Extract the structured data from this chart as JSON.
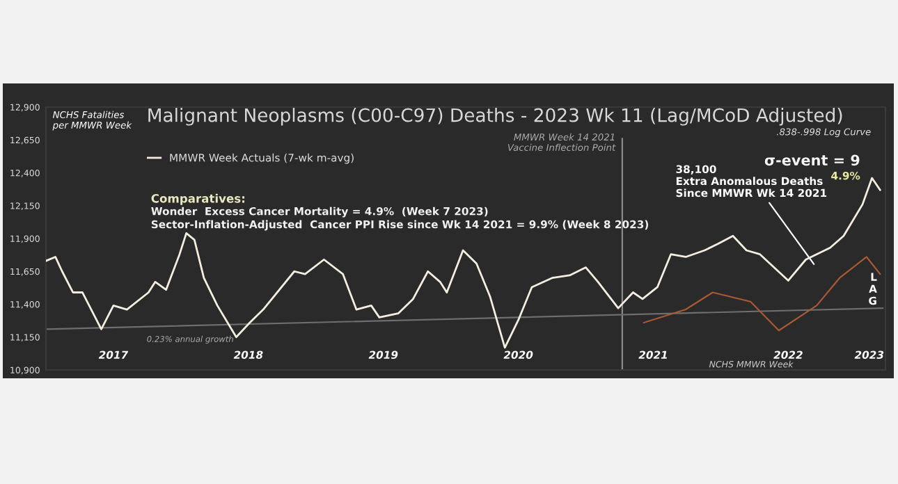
{
  "chart_data": {
    "type": "line",
    "title": "Malignant Neoplasms (C00-C97) Deaths - 2023 Wk 11 (Lag/MCoD Adjusted)",
    "xlabel": "NCHS MMWR Week",
    "ylabel": "NCHS Fatalities\nper MMWR Week",
    "x": [
      2017.0,
      2017.07,
      2017.12,
      2017.2,
      2017.27,
      2017.41,
      2017.5,
      2017.6,
      2017.76,
      2017.81,
      2017.89,
      2017.99,
      2018.04,
      2018.1,
      2018.17,
      2018.27,
      2018.41,
      2018.51,
      2018.61,
      2018.84,
      2018.92,
      2019.06,
      2019.2,
      2019.3,
      2019.41,
      2019.47,
      2019.61,
      2019.72,
      2019.83,
      2019.92,
      2019.97,
      2020.09,
      2020.19,
      2020.29,
      2020.4,
      2020.5,
      2020.6,
      2020.75,
      2020.88,
      2021.0,
      2021.09,
      2021.24,
      2021.35,
      2021.42,
      2021.53,
      2021.63,
      2021.74,
      2021.88,
      2021.98,
      2022.09,
      2022.19,
      2022.29,
      2022.5,
      2022.63,
      2022.81,
      2022.91,
      2023.05,
      2023.12,
      2023.18
    ],
    "series": [
      {
        "name": "MMWR Week Actuals (7-wk m-avg)",
        "color": "#f4eee0",
        "values": [
          11730,
          11760,
          11650,
          11490,
          11490,
          11210,
          11390,
          11360,
          11490,
          11570,
          11510,
          11780,
          11940,
          11890,
          11600,
          11390,
          11150,
          11260,
          11360,
          11650,
          11630,
          11740,
          11630,
          11360,
          11390,
          11300,
          11330,
          11440,
          11650,
          11570,
          11490,
          11810,
          11710,
          11460,
          11070,
          11280,
          11530,
          11600,
          11620,
          11680,
          11570,
          11370,
          11490,
          11440,
          11530,
          11780,
          11760,
          11810,
          11860,
          11920,
          11810,
          11780,
          11580,
          11740,
          11830,
          11920,
          12160,
          12360,
          12270
        ]
      },
      {
        "color": "#a85a34",
        "x": [
          2021.43,
          2021.74,
          2021.94,
          2022.22,
          2022.43,
          2022.71,
          2022.88,
          2023.08,
          2023.18
        ],
        "values": [
          11260,
          11360,
          11490,
          11420,
          11200,
          11390,
          11600,
          11760,
          11630
        ]
      },
      {
        "color": "#6e6e6e",
        "x": [
          2017.0,
          2023.2
        ],
        "values": [
          11210,
          11370
        ]
      }
    ],
    "xlim": [
      2017.0,
      2023.22
    ],
    "xticks": [
      {
        "value": 2017.5,
        "label": "2017"
      },
      {
        "value": 2018.5,
        "label": "2018"
      },
      {
        "value": 2019.5,
        "label": "2019"
      },
      {
        "value": 2020.5,
        "label": "2020"
      },
      {
        "value": 2021.5,
        "label": "2021"
      },
      {
        "value": 2022.5,
        "label": "2022"
      },
      {
        "value": 2023.1,
        "label": "2023"
      }
    ],
    "ylim": [
      10900,
      12900
    ],
    "yticks": [
      {
        "value": 10900,
        "label": "10,900"
      },
      {
        "value": 11150,
        "label": "11,150"
      },
      {
        "value": 11400,
        "label": "11,400"
      },
      {
        "value": 11650,
        "label": "11,650"
      },
      {
        "value": 11900,
        "label": "11,900"
      },
      {
        "value": 12150,
        "label": "12,150"
      },
      {
        "value": 12400,
        "label": "12,400"
      },
      {
        "value": 12650,
        "label": "12,650"
      },
      {
        "value": 12900,
        "label": "12,900"
      }
    ],
    "ref_lines": [
      {
        "axis": "x",
        "value": 2021.27,
        "label": "MMWR Week 14 2021\nVaccine Inflection Point",
        "color": "#8a8a8a"
      }
    ],
    "annotations": [
      "Comparatives:",
      "Wonder  Excess Cancer Mortality = 4.9%  (Week 7 2023)",
      "Sector-Inflation-Adjusted  Cancer PPI Rise since Wk 14 2021 = 9.9% (Week 8 2023)",
      ".838-.998 Log Curve",
      "σ-event = 9",
      "4.9%",
      {
        "text": "38,100\nExtra Anomalous Deaths\nSince MMWR Wk 14 2021",
        "x": 2022.69,
        "y": 11705
      },
      "0.23% annual growth",
      "L\nA\nG"
    ],
    "grid": false,
    "legend": "top left",
    "line_style": "solid",
    "marker": "none"
  }
}
